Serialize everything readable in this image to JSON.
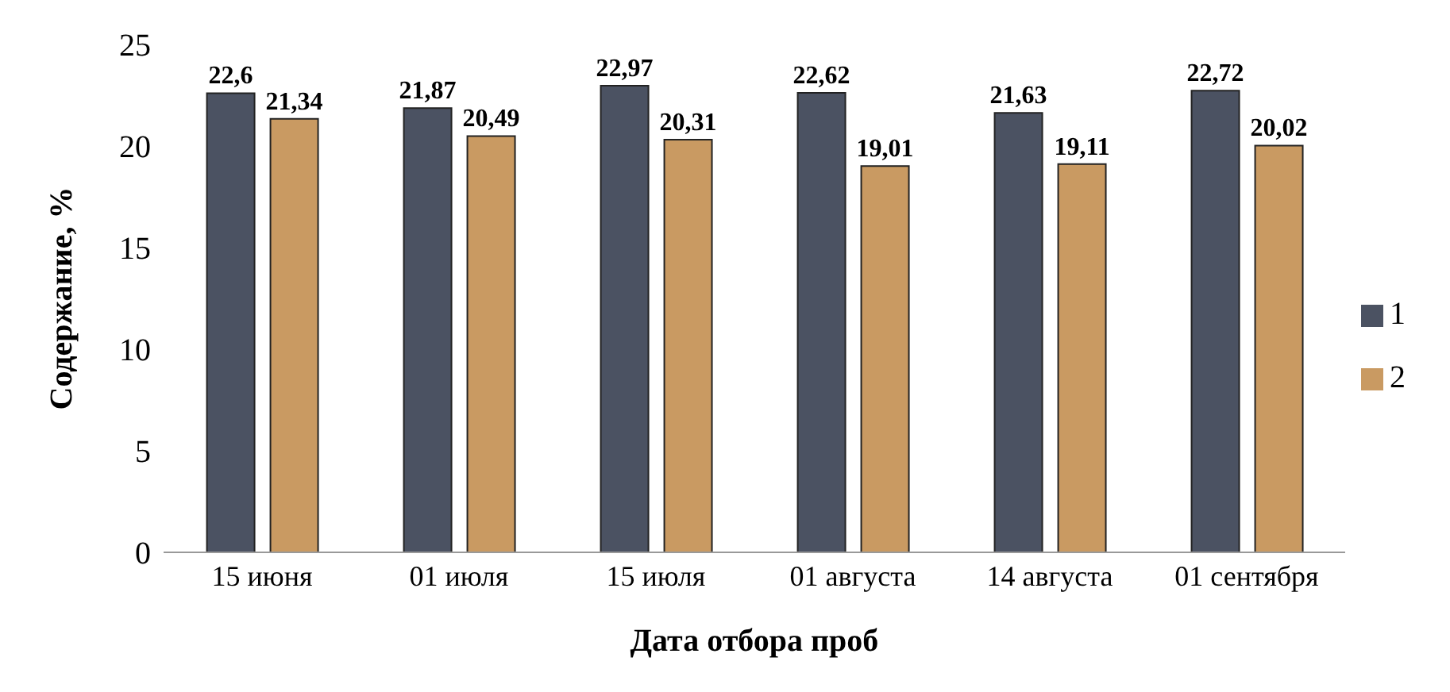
{
  "chart_data": {
    "type": "bar",
    "xlabel": "Дата отбора проб",
    "ylabel": "Содержание, %",
    "categories": [
      "15 июня",
      "01 июля",
      "15 июля",
      "01 августа",
      "14 августа",
      "01 сентября"
    ],
    "series": [
      {
        "name": "1",
        "color": "#4b5262",
        "values": [
          22.6,
          21.87,
          22.97,
          22.62,
          21.63,
          22.72
        ],
        "value_labels": [
          "22,6",
          "21,87",
          "22,97",
          "22,62",
          "21,63",
          "22,72"
        ]
      },
      {
        "name": "2",
        "color": "#c99a62",
        "values": [
          21.34,
          20.49,
          20.31,
          19.01,
          19.11,
          20.02
        ],
        "value_labels": [
          "21,34",
          "20,49",
          "20,31",
          "19,01",
          "19,11",
          "20,02"
        ]
      }
    ],
    "ylim": [
      0,
      25
    ],
    "yticks": [
      0,
      5,
      10,
      15,
      20,
      25
    ],
    "legend": "right"
  }
}
